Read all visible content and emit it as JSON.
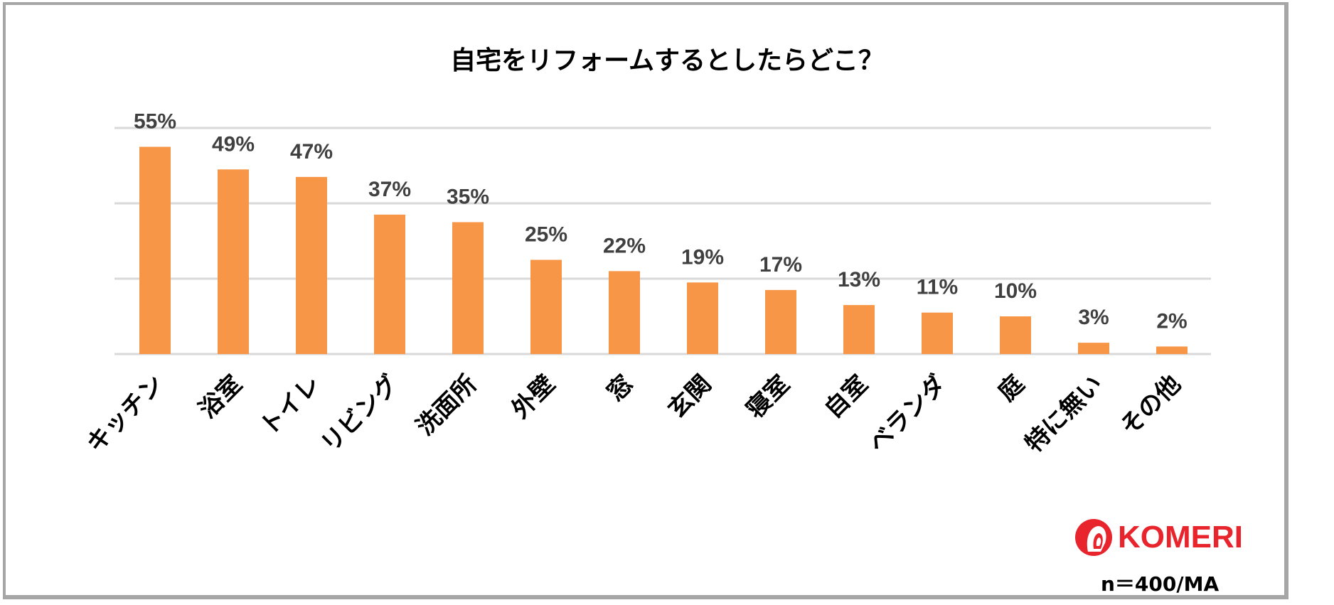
{
  "chart_data": {
    "type": "bar",
    "title": "自宅をリフォームするとしたらどこ？",
    "categories": [
      "キッチン",
      "浴室",
      "トイレ",
      "リビング",
      "洗面所",
      "外壁",
      "窓",
      "玄関",
      "寝室",
      "自室",
      "ベランダ",
      "庭",
      "特に無い",
      "その他"
    ],
    "values": [
      55,
      49,
      47,
      37,
      35,
      25,
      22,
      19,
      17,
      13,
      11,
      10,
      3,
      2
    ],
    "data_labels": [
      "55%",
      "49%",
      "47%",
      "37%",
      "35%",
      "25%",
      "22%",
      "19%",
      "17%",
      "13%",
      "11%",
      "10%",
      "3%",
      "2%"
    ],
    "ylim": [
      0,
      60
    ],
    "gridlines": [
      20,
      40,
      60
    ],
    "grid": true,
    "bar_color": "#f79646",
    "xlabel": "",
    "ylabel": ""
  },
  "brand": {
    "name": "KOMERI",
    "color": "#e8242c"
  },
  "note": "n＝400/MA"
}
